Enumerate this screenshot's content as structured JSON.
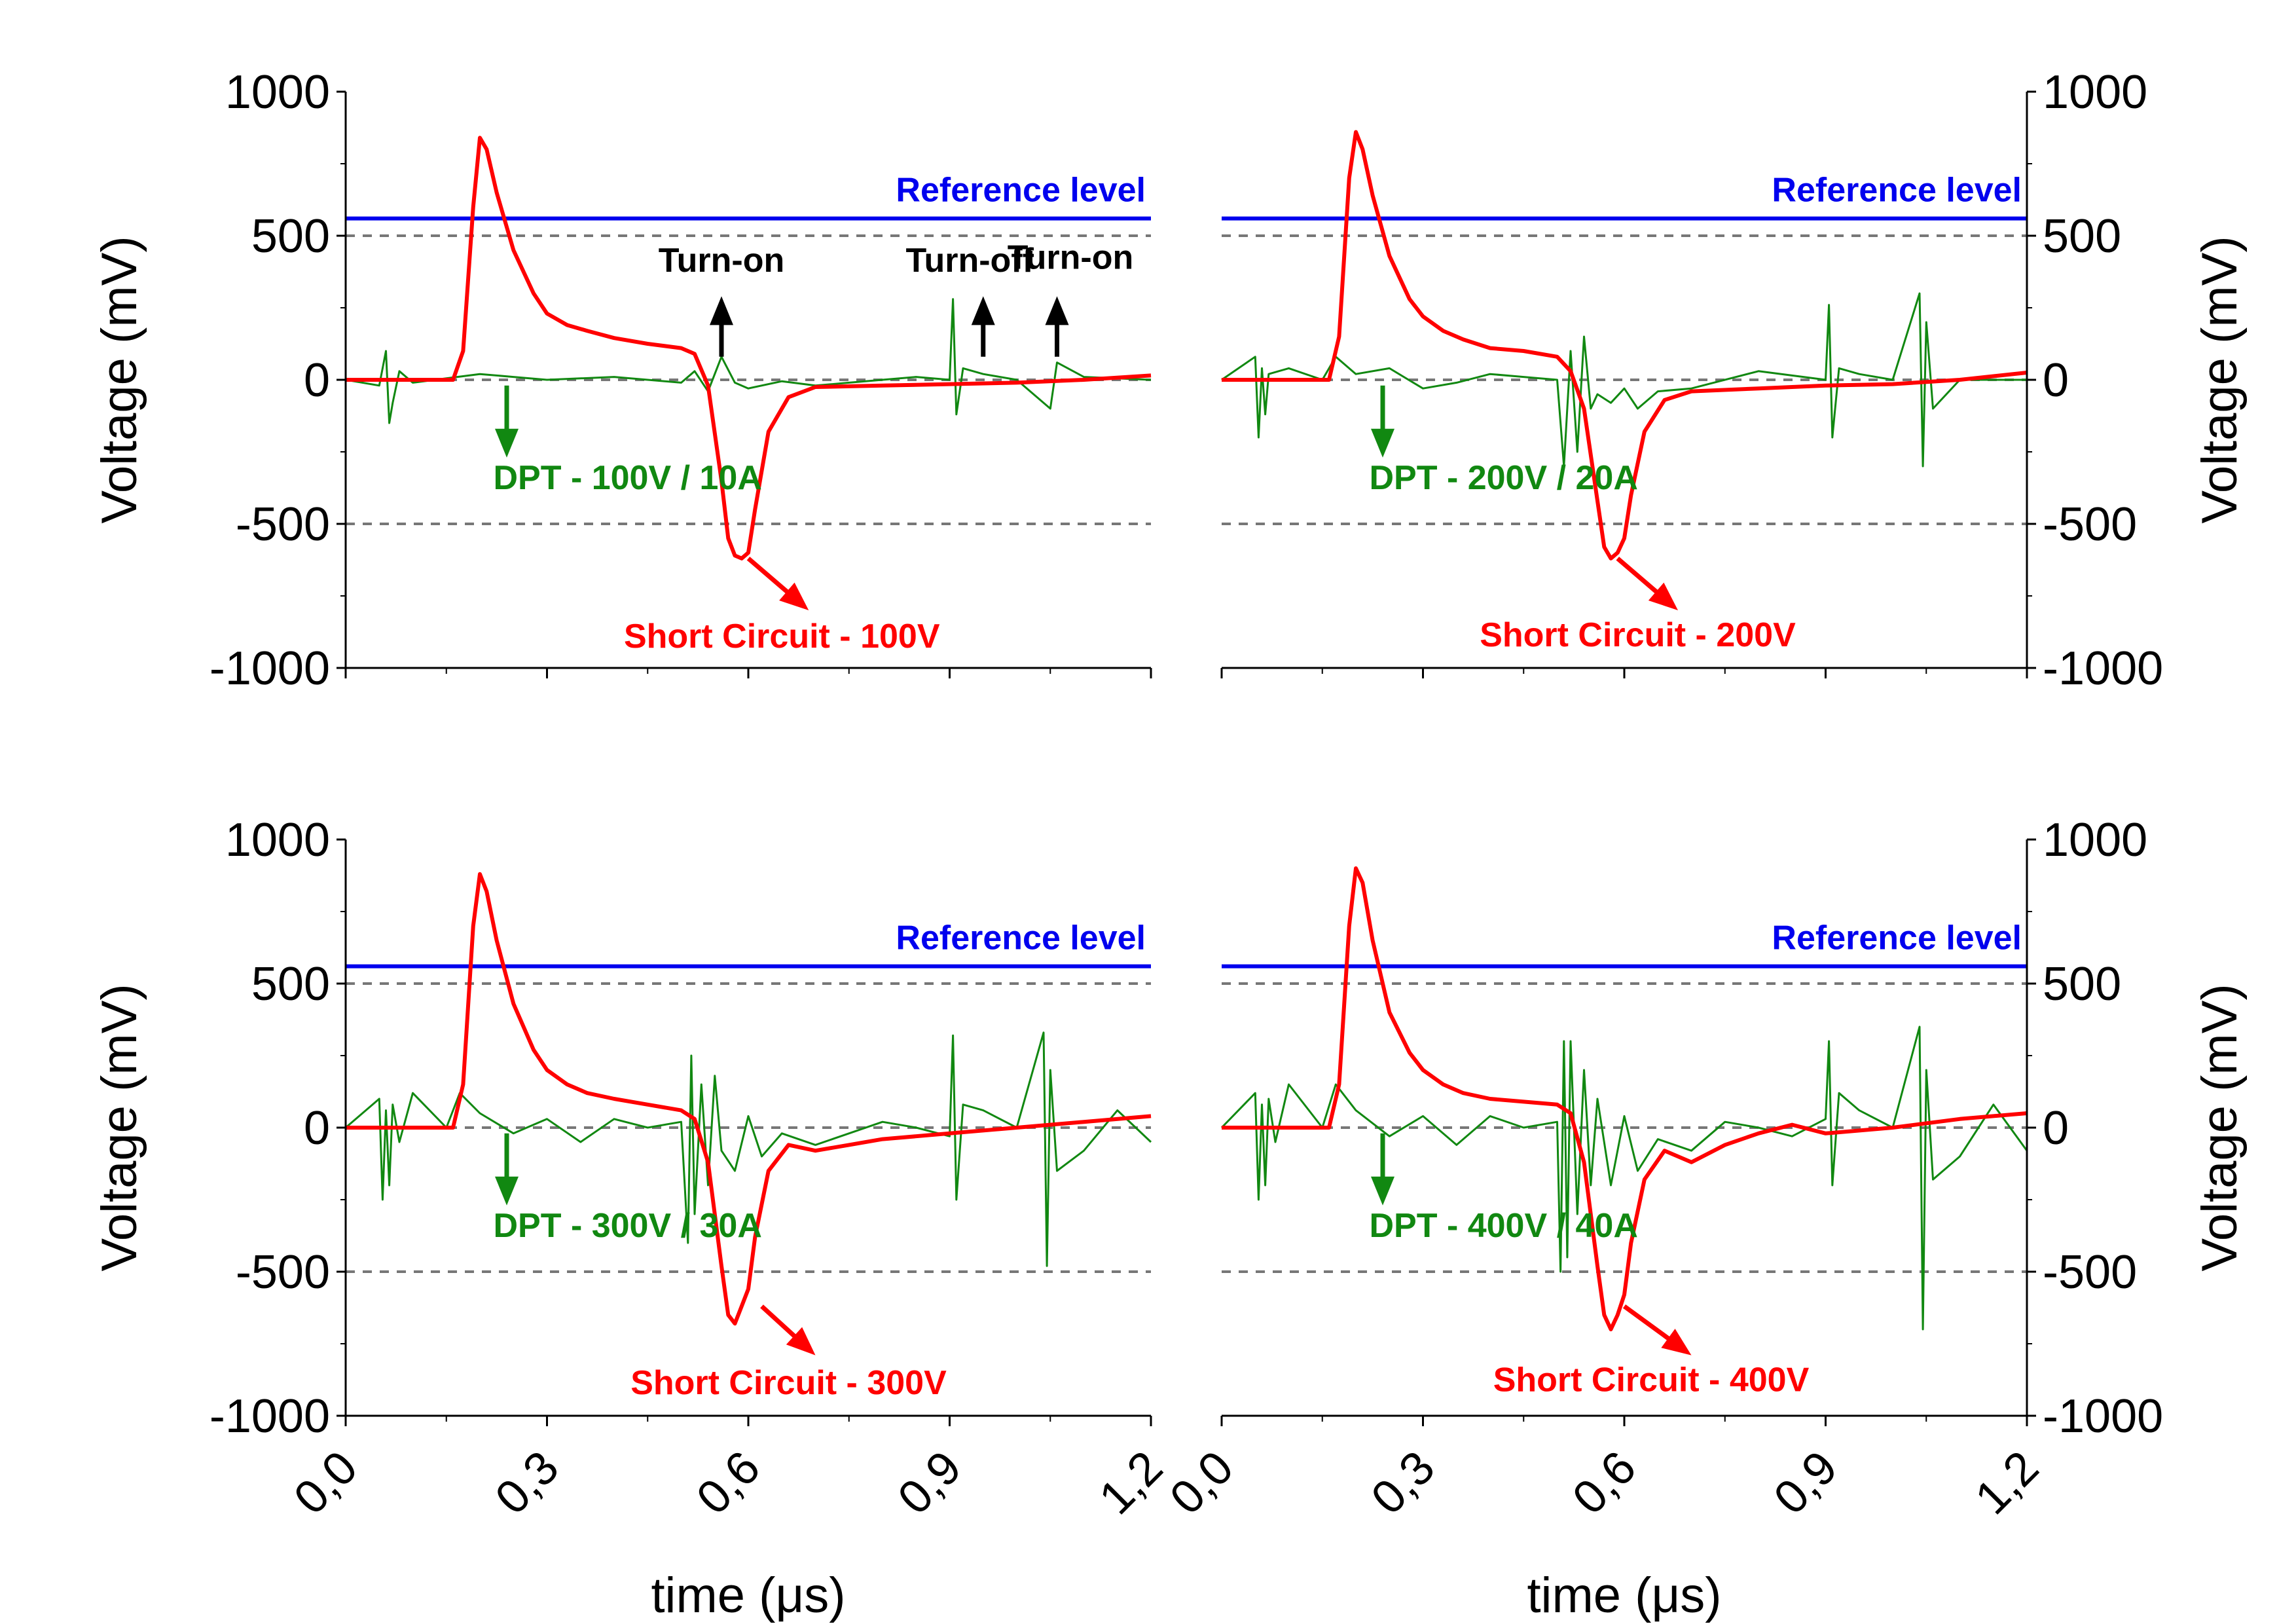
{
  "figure": {
    "background": "#ffffff",
    "colors": {
      "reference": "#0000ee",
      "short_circuit": "#ff0000",
      "dpt": "#118811",
      "dashed": "#777777",
      "black_annotation": "#000000"
    }
  },
  "chart_data": [
    {
      "type": "line",
      "xlim": [
        0.0,
        1.2
      ],
      "ylim": [
        -1000,
        1000
      ],
      "xticks": [
        "0,0",
        "0,3",
        "0,6",
        "0,9",
        "1,2"
      ],
      "yticks": [
        "1000",
        "500",
        "0",
        "-500",
        "-1000"
      ],
      "xlabel": "",
      "ylabel": "Voltage (mV)",
      "dashed_levels": [
        500,
        0,
        -500
      ],
      "reference_level": {
        "value": 560,
        "label": "Reference level"
      },
      "series": [
        {
          "name": "Short Circuit - 100V",
          "color": "#ff0000",
          "x": [
            0.0,
            0.16,
            0.175,
            0.19,
            0.2,
            0.21,
            0.225,
            0.25,
            0.28,
            0.3,
            0.33,
            0.36,
            0.4,
            0.45,
            0.5,
            0.52,
            0.54,
            0.56,
            0.57,
            0.58,
            0.59,
            0.6,
            0.61,
            0.63,
            0.66,
            0.7,
            0.8,
            0.9,
            1.0,
            1.1,
            1.2
          ],
          "y": [
            0,
            0,
            100,
            600,
            840,
            800,
            650,
            450,
            300,
            230,
            190,
            170,
            145,
            125,
            110,
            90,
            -20,
            -350,
            -550,
            -610,
            -620,
            -600,
            -450,
            -180,
            -60,
            -25,
            -20,
            -15,
            -10,
            0,
            15
          ]
        },
        {
          "name": "DPT - 100V / 10A",
          "color": "#118811",
          "x": [
            0.0,
            0.05,
            0.06,
            0.065,
            0.07,
            0.08,
            0.1,
            0.15,
            0.2,
            0.25,
            0.3,
            0.35,
            0.4,
            0.45,
            0.5,
            0.52,
            0.54,
            0.56,
            0.58,
            0.6,
            0.65,
            0.7,
            0.75,
            0.8,
            0.85,
            0.9,
            0.905,
            0.91,
            0.92,
            0.95,
            1.0,
            1.05,
            1.06,
            1.1,
            1.2
          ],
          "y": [
            0,
            -20,
            100,
            -150,
            -80,
            30,
            -10,
            5,
            20,
            10,
            0,
            5,
            10,
            0,
            -10,
            30,
            -40,
            80,
            -10,
            -30,
            -5,
            -20,
            -10,
            0,
            10,
            0,
            280,
            -120,
            40,
            20,
            0,
            -100,
            60,
            10,
            0
          ]
        }
      ],
      "annotations": [
        {
          "text": "Turn-on",
          "color": "#000000",
          "x": 0.56,
          "y": 375
        },
        {
          "text": "Turn-off",
          "color": "#000000",
          "x": 0.93,
          "y": 375
        },
        {
          "text": "Turn-on",
          "color": "#000000",
          "x": 1.08,
          "y": 385
        },
        {
          "text": "DPT - 100V / 10A",
          "color": "#118811",
          "x": 0.22,
          "y": -380
        },
        {
          "text": "Short Circuit - 100V",
          "color": "#ff0000",
          "x": 0.65,
          "y": -930
        }
      ],
      "arrows": [
        {
          "color": "#000000",
          "x1": 0.56,
          "y1": 80,
          "x2": 0.56,
          "y2": 290
        },
        {
          "color": "#000000",
          "x1": 0.95,
          "y1": 80,
          "x2": 0.95,
          "y2": 290
        },
        {
          "color": "#000000",
          "x1": 1.06,
          "y1": 80,
          "x2": 1.06,
          "y2": 290
        },
        {
          "color": "#118811",
          "x1": 0.24,
          "y1": -20,
          "x2": 0.24,
          "y2": -270
        },
        {
          "color": "#ff0000",
          "x1": 0.6,
          "y1": -620,
          "x2": 0.69,
          "y2": -800
        }
      ]
    },
    {
      "type": "line",
      "xlim": [
        0.0,
        1.2
      ],
      "ylim": [
        -1000,
        1000
      ],
      "xticks": [
        "0,0",
        "0,3",
        "0,6",
        "0,9",
        "1,2"
      ],
      "yticks": [
        "1000",
        "500",
        "0",
        "-500",
        "-1000"
      ],
      "xlabel": "",
      "ylabel": "Voltage (mV)",
      "dashed_levels": [
        500,
        0,
        -500
      ],
      "reference_level": {
        "value": 560,
        "label": "Reference level"
      },
      "series": [
        {
          "name": "Short Circuit - 200V",
          "color": "#ff0000",
          "x": [
            0.0,
            0.16,
            0.175,
            0.19,
            0.2,
            0.21,
            0.225,
            0.25,
            0.28,
            0.3,
            0.33,
            0.36,
            0.4,
            0.45,
            0.5,
            0.52,
            0.54,
            0.56,
            0.57,
            0.58,
            0.59,
            0.6,
            0.61,
            0.63,
            0.66,
            0.7,
            0.8,
            0.9,
            1.0,
            1.1,
            1.2
          ],
          "y": [
            0,
            0,
            150,
            700,
            860,
            800,
            640,
            430,
            280,
            220,
            170,
            140,
            110,
            100,
            80,
            30,
            -100,
            -420,
            -580,
            -620,
            -600,
            -550,
            -400,
            -180,
            -70,
            -40,
            -30,
            -20,
            -15,
            0,
            25
          ]
        },
        {
          "name": "DPT - 200V / 20A",
          "color": "#118811",
          "x": [
            0.0,
            0.05,
            0.055,
            0.06,
            0.065,
            0.07,
            0.1,
            0.15,
            0.17,
            0.2,
            0.25,
            0.3,
            0.35,
            0.4,
            0.45,
            0.5,
            0.51,
            0.52,
            0.53,
            0.54,
            0.55,
            0.56,
            0.58,
            0.6,
            0.62,
            0.65,
            0.7,
            0.8,
            0.9,
            0.905,
            0.91,
            0.92,
            0.95,
            1.0,
            1.04,
            1.045,
            1.05,
            1.06,
            1.1,
            1.2
          ],
          "y": [
            0,
            80,
            -200,
            40,
            -120,
            20,
            40,
            0,
            80,
            20,
            40,
            -30,
            -10,
            20,
            10,
            0,
            -300,
            100,
            -250,
            150,
            -100,
            -50,
            -80,
            -30,
            -100,
            -40,
            -30,
            30,
            0,
            260,
            -200,
            40,
            20,
            0,
            300,
            -300,
            200,
            -100,
            0,
            0
          ]
        }
      ],
      "annotations": [
        {
          "text": "DPT - 200V / 20A",
          "color": "#118811",
          "x": 0.22,
          "y": -380
        },
        {
          "text": "Short Circuit - 200V",
          "color": "#ff0000",
          "x": 0.62,
          "y": -925
        }
      ],
      "arrows": [
        {
          "color": "#118811",
          "x1": 0.24,
          "y1": -20,
          "x2": 0.24,
          "y2": -270
        },
        {
          "color": "#ff0000",
          "x1": 0.59,
          "y1": -620,
          "x2": 0.68,
          "y2": -800
        }
      ]
    },
    {
      "type": "line",
      "xlim": [
        0.0,
        1.2
      ],
      "ylim": [
        -1000,
        1000
      ],
      "xticks": [
        "0,0",
        "0,3",
        "0,6",
        "0,9",
        "1,2"
      ],
      "yticks": [
        "1000",
        "500",
        "0",
        "-500",
        "-1000"
      ],
      "xlabel": "time (μs)",
      "ylabel": "Voltage (mV)",
      "dashed_levels": [
        500,
        0,
        -500
      ],
      "reference_level": {
        "value": 560,
        "label": "Reference level"
      },
      "series": [
        {
          "name": "Short Circuit - 300V",
          "color": "#ff0000",
          "x": [
            0.0,
            0.16,
            0.175,
            0.19,
            0.2,
            0.21,
            0.225,
            0.25,
            0.28,
            0.3,
            0.33,
            0.36,
            0.4,
            0.45,
            0.5,
            0.52,
            0.54,
            0.56,
            0.57,
            0.58,
            0.59,
            0.6,
            0.61,
            0.63,
            0.66,
            0.7,
            0.75,
            0.8,
            0.9,
            1.0,
            1.1,
            1.2
          ],
          "y": [
            0,
            0,
            150,
            700,
            880,
            820,
            650,
            430,
            270,
            200,
            150,
            120,
            100,
            80,
            60,
            30,
            -120,
            -480,
            -650,
            -680,
            -620,
            -560,
            -380,
            -150,
            -60,
            -80,
            -60,
            -40,
            -20,
            0,
            20,
            40
          ]
        },
        {
          "name": "DPT - 300V / 30A",
          "color": "#118811",
          "x": [
            0.0,
            0.05,
            0.055,
            0.06,
            0.065,
            0.07,
            0.08,
            0.1,
            0.15,
            0.17,
            0.2,
            0.25,
            0.3,
            0.35,
            0.4,
            0.45,
            0.5,
            0.51,
            0.515,
            0.52,
            0.53,
            0.54,
            0.55,
            0.56,
            0.58,
            0.6,
            0.62,
            0.65,
            0.7,
            0.75,
            0.8,
            0.85,
            0.9,
            0.905,
            0.91,
            0.92,
            0.95,
            1.0,
            1.04,
            1.045,
            1.05,
            1.06,
            1.1,
            1.15,
            1.2
          ],
          "y": [
            0,
            100,
            -250,
            60,
            -200,
            80,
            -50,
            120,
            0,
            120,
            50,
            -20,
            30,
            -50,
            30,
            0,
            20,
            -400,
            250,
            -300,
            150,
            -200,
            180,
            -80,
            -150,
            40,
            -100,
            -20,
            -60,
            -20,
            20,
            0,
            -30,
            320,
            -250,
            80,
            60,
            0,
            330,
            -480,
            200,
            -150,
            -80,
            60,
            -50
          ]
        }
      ],
      "annotations": [
        {
          "text": "DPT - 300V / 30A",
          "color": "#118811",
          "x": 0.22,
          "y": -380
        },
        {
          "text": "Short Circuit - 300V",
          "color": "#ff0000",
          "x": 0.66,
          "y": -925
        }
      ],
      "arrows": [
        {
          "color": "#118811",
          "x1": 0.24,
          "y1": -20,
          "x2": 0.24,
          "y2": -270
        },
        {
          "color": "#ff0000",
          "x1": 0.62,
          "y1": -620,
          "x2": 0.7,
          "y2": -790
        }
      ]
    },
    {
      "type": "line",
      "xlim": [
        0.0,
        1.2
      ],
      "ylim": [
        -1000,
        1000
      ],
      "xticks": [
        "0,0",
        "0,3",
        "0,6",
        "0,9",
        "1,2"
      ],
      "yticks": [
        "1000",
        "500",
        "0",
        "-500",
        "-1000"
      ],
      "xlabel": "time (μs)",
      "ylabel": "Voltage (mV)",
      "dashed_levels": [
        500,
        0,
        -500
      ],
      "reference_level": {
        "value": 560,
        "label": "Reference level"
      },
      "series": [
        {
          "name": "Short Circuit - 400V",
          "color": "#ff0000",
          "x": [
            0.0,
            0.16,
            0.175,
            0.19,
            0.2,
            0.21,
            0.225,
            0.25,
            0.28,
            0.3,
            0.33,
            0.36,
            0.4,
            0.45,
            0.5,
            0.52,
            0.54,
            0.56,
            0.57,
            0.58,
            0.59,
            0.6,
            0.61,
            0.63,
            0.66,
            0.7,
            0.75,
            0.8,
            0.85,
            0.9,
            1.0,
            1.1,
            1.2
          ],
          "y": [
            0,
            0,
            150,
            700,
            900,
            850,
            650,
            400,
            260,
            200,
            150,
            120,
            100,
            90,
            80,
            50,
            -120,
            -480,
            -650,
            -700,
            -650,
            -580,
            -400,
            -180,
            -80,
            -120,
            -60,
            -20,
            10,
            -20,
            0,
            30,
            50
          ]
        },
        {
          "name": "DPT - 400V / 40A",
          "color": "#118811",
          "x": [
            0.0,
            0.05,
            0.055,
            0.06,
            0.065,
            0.07,
            0.08,
            0.1,
            0.15,
            0.17,
            0.2,
            0.25,
            0.3,
            0.35,
            0.4,
            0.45,
            0.5,
            0.505,
            0.51,
            0.515,
            0.52,
            0.53,
            0.54,
            0.55,
            0.56,
            0.58,
            0.6,
            0.62,
            0.65,
            0.7,
            0.75,
            0.8,
            0.85,
            0.9,
            0.905,
            0.91,
            0.92,
            0.95,
            1.0,
            1.04,
            1.045,
            1.05,
            1.06,
            1.1,
            1.15,
            1.2
          ],
          "y": [
            0,
            120,
            -250,
            80,
            -200,
            100,
            -50,
            150,
            0,
            150,
            60,
            -30,
            40,
            -60,
            40,
            0,
            20,
            -500,
            300,
            -450,
            300,
            -300,
            200,
            -200,
            100,
            -200,
            40,
            -150,
            -40,
            -80,
            20,
            0,
            -30,
            30,
            300,
            -200,
            120,
            60,
            0,
            350,
            -700,
            200,
            -180,
            -100,
            80,
            -80
          ]
        }
      ],
      "annotations": [
        {
          "text": "DPT - 400V / 40A",
          "color": "#118811",
          "x": 0.22,
          "y": -380
        },
        {
          "text": "Short Circuit - 400V",
          "color": "#ff0000",
          "x": 0.64,
          "y": -915
        }
      ],
      "arrows": [
        {
          "color": "#118811",
          "x1": 0.24,
          "y1": -20,
          "x2": 0.24,
          "y2": -270
        },
        {
          "color": "#ff0000",
          "x1": 0.6,
          "y1": -620,
          "x2": 0.7,
          "y2": -790
        }
      ]
    }
  ]
}
